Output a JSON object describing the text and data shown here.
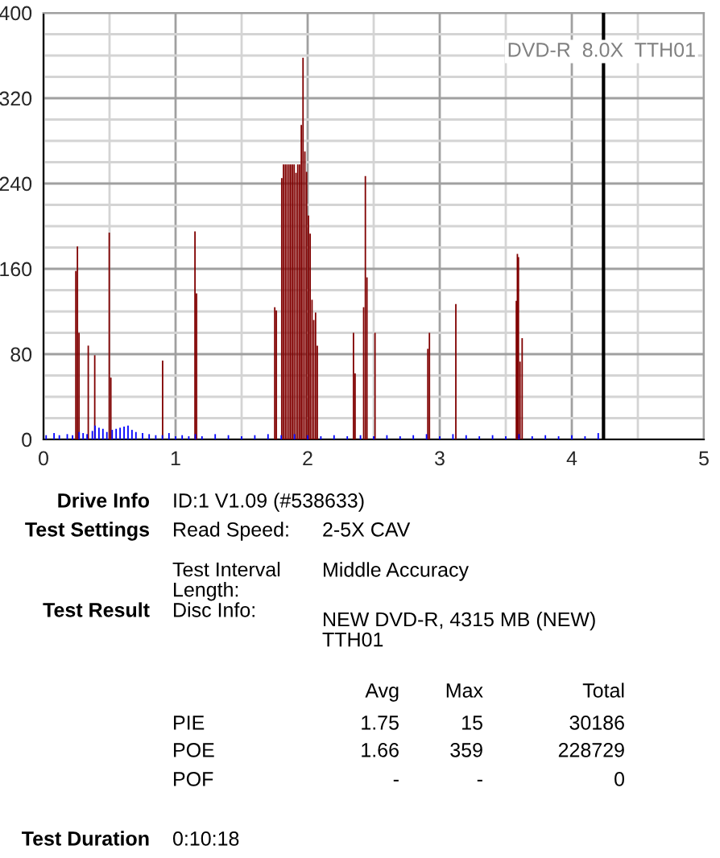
{
  "chart_data": {
    "type": "bar",
    "xlim": [
      0,
      5
    ],
    "xticks": [
      0,
      1,
      2,
      3,
      4,
      5
    ],
    "ylim": [
      0,
      400
    ],
    "yticks": [
      0,
      80,
      160,
      240,
      320,
      400
    ],
    "grid": true,
    "series": [
      {
        "color": "#0000ff",
        "x": [
          0.02,
          0.08,
          0.12,
          0.18,
          0.22,
          0.27,
          0.3,
          0.33,
          0.37,
          0.39,
          0.42,
          0.45,
          0.48,
          0.52,
          0.55,
          0.58,
          0.61,
          0.64,
          0.67,
          0.7,
          0.75,
          0.8,
          0.85,
          0.9,
          0.95,
          1.0,
          1.05,
          1.1,
          1.15,
          1.2,
          1.3,
          1.4,
          1.5,
          1.6,
          1.7,
          1.8,
          1.9,
          2.0,
          2.1,
          2.2,
          2.3,
          2.4,
          2.5,
          2.6,
          2.7,
          2.8,
          2.9,
          3.0,
          3.1,
          3.2,
          3.3,
          3.4,
          3.5,
          3.6,
          3.7,
          3.8,
          3.9,
          4.0,
          4.1,
          4.2
        ],
        "values": [
          4,
          6,
          4,
          5,
          4,
          7,
          6,
          5,
          8,
          13,
          11,
          10,
          7,
          9,
          10,
          11,
          12,
          13,
          9,
          7,
          6,
          5,
          4,
          4,
          6,
          3,
          4,
          3,
          5,
          3,
          5,
          4,
          3,
          4,
          5,
          4,
          5,
          4,
          3,
          4,
          3,
          4,
          3,
          4,
          3,
          4,
          5,
          3,
          5,
          4,
          3,
          4,
          3,
          5,
          3,
          4,
          3,
          4,
          3,
          6
        ]
      },
      {
        "color": "#800000",
        "x": [
          0.245,
          0.257,
          0.269,
          0.339,
          0.388,
          0.498,
          0.51,
          0.902,
          1.147,
          1.159,
          1.751,
          1.763,
          1.804,
          1.817,
          1.831,
          1.844,
          1.858,
          1.871,
          1.885,
          1.898,
          1.912,
          1.925,
          1.939,
          1.952,
          1.965,
          1.979,
          1.992,
          2.006,
          2.019,
          2.033,
          2.046,
          2.06,
          2.073,
          2.347,
          2.359,
          2.424,
          2.437,
          2.449,
          2.51,
          2.91,
          2.922,
          3.122,
          3.58,
          3.588,
          3.596,
          3.608,
          3.624
        ],
        "values": [
          158,
          181,
          100,
          88,
          79,
          194,
          58,
          74,
          195,
          137,
          124,
          121,
          245,
          258,
          258,
          258,
          258,
          258,
          258,
          258,
          250,
          258,
          258,
          295,
          358,
          270,
          251,
          210,
          193,
          131,
          112,
          119,
          88,
          100,
          62,
          124,
          247,
          152,
          100,
          85,
          100,
          127,
          130,
          174,
          171,
          73,
          95
        ]
      }
    ],
    "ref_lines": [
      {
        "axis": "x",
        "value": 4.24,
        "color": "#000000"
      }
    ],
    "annotations": [
      "DVD-R  8.0X  TTH01",
      "Drive Info",
      "ID:1 V1.09 (#538633)",
      "Test Settings",
      "Read Speed:",
      "2-5X CAV",
      "Test Interval\nLength:",
      "Middle Accuracy",
      "Test Result",
      "Disc Info:",
      "NEW DVD-R, 4315 MB (NEW)\nTTH01",
      "Avg",
      "Max",
      "Total",
      "PIE",
      "1.75",
      "15",
      "30186",
      "POE",
      "1.66",
      "359",
      "228729",
      "POF",
      "-",
      "-",
      "0",
      "Test Duration",
      "0:10:18"
    ]
  }
}
